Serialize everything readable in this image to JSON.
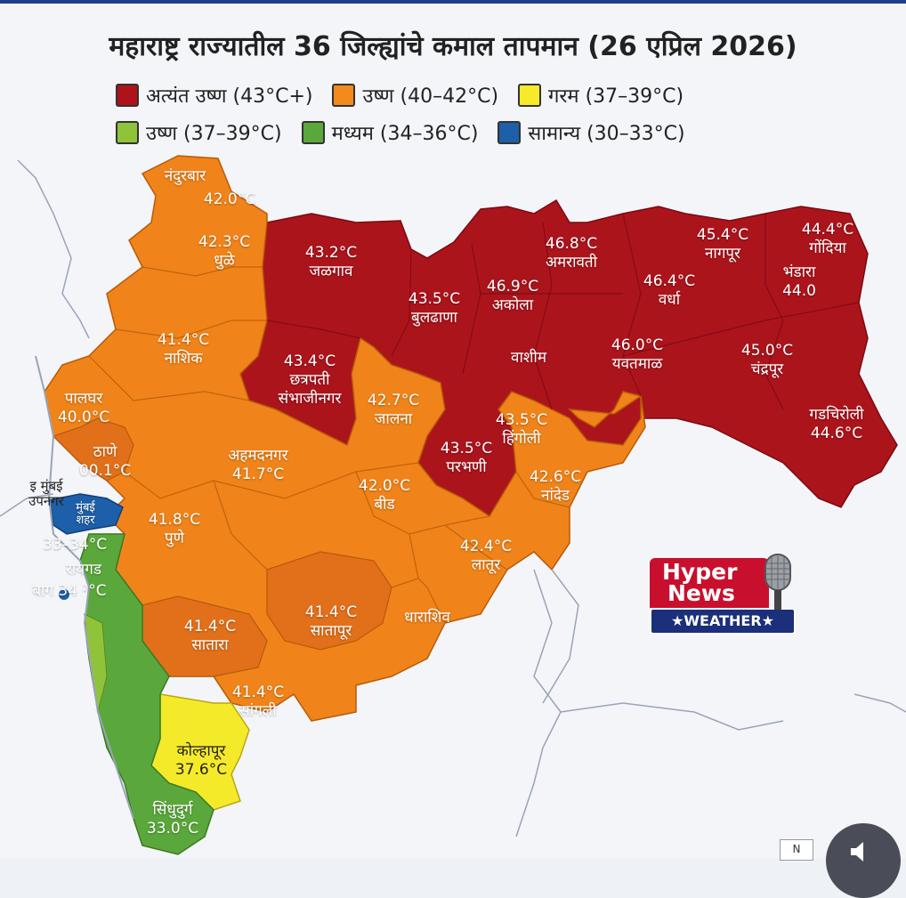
{
  "title": "महाराष्ट्र राज्यातील 36 जिल्ह्यांचे कमाल तापमान (26 एप्रिल 2026)",
  "legend": [
    {
      "label": "अत्यंत उष्ण (43°C+)",
      "color": "#b0121b"
    },
    {
      "label": "उष्ण (40–42°C)",
      "color": "#f28a1c"
    },
    {
      "label": "गरम (37–39°C)",
      "color": "#f7ea2a"
    },
    {
      "label": "उष्ण (37–39°C)",
      "color": "#8fc43a"
    },
    {
      "label": "मध्यम (34–36°C)",
      "color": "#5aa83b"
    },
    {
      "label": "सामान्य (30–33°C)",
      "color": "#1d5fa8"
    }
  ],
  "districts": {
    "nandurbar": {
      "name": "नंदुरबार",
      "temp": "42.0°C"
    },
    "dhule": {
      "name": "धुळे",
      "temp": "42.3°C"
    },
    "jalgaon": {
      "name": "जळगाव",
      "temp": "43.2°C"
    },
    "buldhana": {
      "name": "बुलढाणा",
      "temp": "43.5°C"
    },
    "akola": {
      "name": "अकोला",
      "temp": "46.9°C"
    },
    "amravati": {
      "name": "अमरावती",
      "temp": "46.8°C"
    },
    "nagpur": {
      "name": "नागपूर",
      "temp": "45.4°C"
    },
    "gondia": {
      "name": "गोंदिया",
      "temp": "44.4°C"
    },
    "bhandara": {
      "name": "भंडारा",
      "temp": "44.0"
    },
    "wardha": {
      "name": "वर्धा",
      "temp": "46.4°C"
    },
    "washim": {
      "name": "वाशीम",
      "temp": ""
    },
    "yavatmal": {
      "name": "यवतमाळ",
      "temp": "46.0°C"
    },
    "chandrapur": {
      "name": "चंद्रपूर",
      "temp": "45.0°C"
    },
    "gadchiroli": {
      "name": "गडचिरोली",
      "temp": "44.6°C"
    },
    "nashik": {
      "name": "नाशिक",
      "temp": "41.4°C"
    },
    "sambhajinagar": {
      "name": "छत्रपती संभाजीनगर",
      "temp": "43.4°C"
    },
    "jalna": {
      "name": "जालना",
      "temp": "42.7°C"
    },
    "hingoli": {
      "name": "हिंगोली",
      "temp": "43.5°C"
    },
    "parbhani": {
      "name": "परभणी",
      "temp": "43.5°C"
    },
    "nanded": {
      "name": "नांदेड",
      "temp": "42.6°C"
    },
    "palghar": {
      "name": "पालघर",
      "temp": "40.0°C"
    },
    "thane": {
      "name": "ठाणे",
      "temp": "00.1°C"
    },
    "ahmednagar": {
      "name": "अहमदनगर",
      "temp": "41.7°C"
    },
    "beed": {
      "name": "बीड",
      "temp": "42.0°C"
    },
    "pune": {
      "name": "पुणे",
      "temp": "41.8°C"
    },
    "latur": {
      "name": "लातूर",
      "temp": "42.4°C"
    },
    "dharashiv": {
      "name": "धाराशिव",
      "temp": ""
    },
    "satara": {
      "name": "सातारा",
      "temp": "41.4°C"
    },
    "solapur": {
      "name": "सातापूर",
      "temp": "41.4°C"
    },
    "sangli": {
      "name": "सांगली",
      "temp": "41.4°C"
    },
    "kolhapur": {
      "name": "कोल्हापूर",
      "temp": "37.6°C"
    },
    "sindhudurg": {
      "name": "सिंधुदुर्ग",
      "temp": "33.0°C"
    },
    "mumbai_label": {
      "name": "इ मुंबई",
      "sub": "उपनगर"
    },
    "mumbai_city": {
      "name": "मुंबई",
      "sub": "शहर"
    },
    "mumbai_temp": {
      "temp": "33–34°C"
    },
    "raigad": {
      "name": "रायगड"
    },
    "ratnagiri": {
      "name": "बाग",
      "temp": "34 ²°C"
    }
  },
  "badge": {
    "line1": "Hyper",
    "line2": "News",
    "line3": "★WEATHER★"
  },
  "corner": {
    "compass": "N"
  }
}
